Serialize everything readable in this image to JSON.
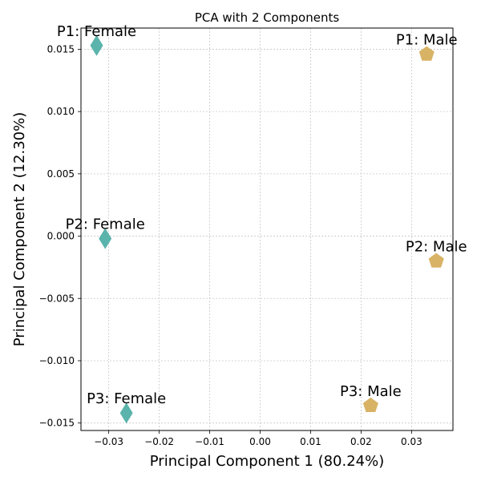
{
  "chart_data": {
    "type": "scatter",
    "title": "PCA with 2 Components",
    "xlabel": "Principal Component 1 (80.24%)",
    "ylabel": "Principal Component 2 (12.30%)",
    "xlim": [
      -0.0355,
      0.0382
    ],
    "ylim": [
      -0.0156,
      0.0167
    ],
    "xticks": [
      -0.03,
      -0.02,
      -0.01,
      0.0,
      0.01,
      0.02,
      0.03
    ],
    "xtick_labels": [
      "−0.03",
      "−0.02",
      "−0.01",
      "0.00",
      "0.01",
      "0.02",
      "0.03"
    ],
    "yticks": [
      -0.015,
      -0.01,
      -0.005,
      0.0,
      0.005,
      0.01,
      0.015
    ],
    "ytick_labels": [
      "−0.015",
      "−0.010",
      "−0.005",
      "0.000",
      "0.005",
      "0.010",
      "0.015"
    ],
    "grid": true,
    "series": [
      {
        "group": "Female",
        "marker": "diamond",
        "color": "#5ab4ac",
        "points": [
          {
            "label": "P1: Female",
            "x": -0.0324,
            "y": 0.0153
          },
          {
            "label": "P2: Female",
            "x": -0.0307,
            "y": -0.0002
          },
          {
            "label": "P3: Female",
            "x": -0.0265,
            "y": -0.0142
          }
        ]
      },
      {
        "group": "Male",
        "marker": "pentagon",
        "color": "#d8b365",
        "points": [
          {
            "label": "P1: Male",
            "x": 0.033,
            "y": 0.0146
          },
          {
            "label": "P2: Male",
            "x": 0.0349,
            "y": -0.002
          },
          {
            "label": "P3: Male",
            "x": 0.0219,
            "y": -0.0136
          }
        ]
      }
    ]
  }
}
